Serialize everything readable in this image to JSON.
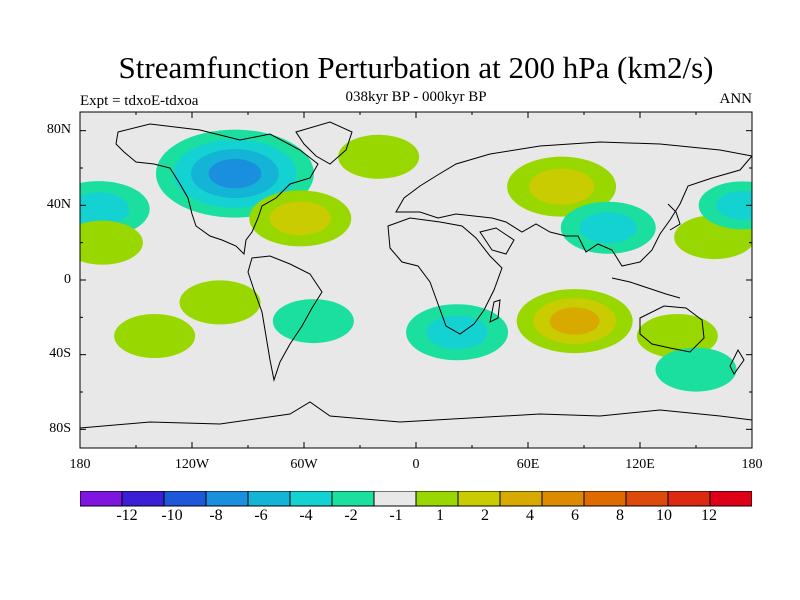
{
  "title": "Streamfunction Perturbation at 200 hPa (km2/s)",
  "subtitle": "038kyr BP - 000kyr BP",
  "left_label": "Expt = tdxoE-tdxoa",
  "right_label": "ANN",
  "lat_ticks": [
    "80N",
    "40N",
    "0",
    "40S",
    "80S"
  ],
  "lon_ticks": [
    "180",
    "120W",
    "60W",
    "0",
    "60E",
    "120E",
    "180"
  ],
  "colorbar": {
    "colors": [
      "#7f16e0",
      "#3a1fd6",
      "#1e58d8",
      "#1a8fdd",
      "#13b4d6",
      "#14d2d2",
      "#1adf9e",
      "#e8e8e8",
      "#98d800",
      "#c8cc00",
      "#d8aa00",
      "#dc8a00",
      "#de6a00",
      "#dc4a0c",
      "#dc2a12",
      "#de0016"
    ],
    "labels": [
      "-12",
      "-10",
      "-8",
      "-6",
      "-4",
      "-2",
      "-1",
      "1",
      "2",
      "4",
      "6",
      "8",
      "10",
      "12"
    ]
  },
  "chart_data": {
    "type": "heatmap",
    "title": "Streamfunction Perturbation at 200 hPa (km2/s)",
    "subtitle": "038kyr BP - 000kyr BP",
    "xlim": [
      -180,
      180
    ],
    "ylim": [
      -90,
      90
    ],
    "contour_levels": [
      -12,
      -10,
      -8,
      -6,
      -4,
      -2,
      -1,
      1,
      2,
      4,
      6,
      8,
      10,
      12
    ],
    "anomaly_centers": [
      {
        "lon": -97,
        "lat": 57,
        "value": -7
      },
      {
        "lon": -170,
        "lat": 38,
        "value": -3
      },
      {
        "lon": -168,
        "lat": 20,
        "value": 1.5
      },
      {
        "lon": -62,
        "lat": 33,
        "value": 3
      },
      {
        "lon": -105,
        "lat": -12,
        "value": 1.5
      },
      {
        "lon": -140,
        "lat": -30,
        "value": 1.5
      },
      {
        "lon": -55,
        "lat": -22,
        "value": -1.5
      },
      {
        "lon": 22,
        "lat": -28,
        "value": -3
      },
      {
        "lon": 85,
        "lat": -22,
        "value": 4
      },
      {
        "lon": 78,
        "lat": 50,
        "value": 3.5
      },
      {
        "lon": 103,
        "lat": 28,
        "value": -2.5
      },
      {
        "lon": 160,
        "lat": 23,
        "value": 1.5
      },
      {
        "lon": 175,
        "lat": 40,
        "value": -2
      },
      {
        "lon": 140,
        "lat": -30,
        "value": 1.5
      },
      {
        "lon": -20,
        "lat": 66,
        "value": 1.5
      },
      {
        "lon": 150,
        "lat": -48,
        "value": -1.5
      }
    ]
  }
}
